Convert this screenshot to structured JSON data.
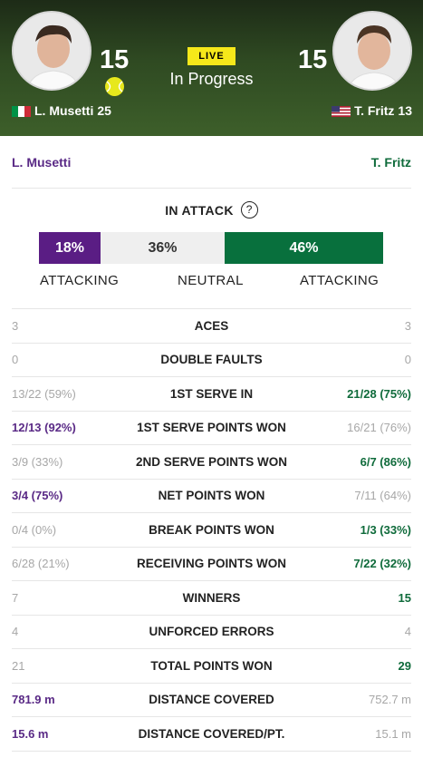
{
  "header": {
    "status_badge": "LIVE",
    "status_text": "In Progress",
    "left": {
      "score": "15",
      "name": "L. Musetti",
      "seed": "25",
      "flag": "italy-flag",
      "serving": true
    },
    "right": {
      "score": "15",
      "name": "T. Fritz",
      "seed": "13",
      "flag": "usa-flag"
    }
  },
  "panel": {
    "left_name": "L. Musetti",
    "right_name": "T. Fritz",
    "attack": {
      "title": "IN ATTACK",
      "help_glyph": "?",
      "left_pct": "18%",
      "neutral_pct": "36%",
      "right_pct": "46%",
      "left_fraction": 0.18,
      "neutral_fraction": 0.36,
      "right_fraction": 0.46,
      "left_label": "ATTACKING",
      "neutral_label": "NEUTRAL",
      "right_label": "ATTACKING"
    },
    "stats": [
      {
        "label": "ACES",
        "left": "3",
        "right": "3",
        "winner": "none"
      },
      {
        "label": "DOUBLE FAULTS",
        "left": "0",
        "right": "0",
        "winner": "none"
      },
      {
        "label": "1ST SERVE IN",
        "left": "13/22 (59%)",
        "right": "21/28 (75%)",
        "winner": "right"
      },
      {
        "label": "1ST SERVE POINTS WON",
        "left": "12/13 (92%)",
        "right": "16/21 (76%)",
        "winner": "left"
      },
      {
        "label": "2ND SERVE POINTS WON",
        "left": "3/9 (33%)",
        "right": "6/7 (86%)",
        "winner": "right"
      },
      {
        "label": "NET POINTS WON",
        "left": "3/4 (75%)",
        "right": "7/11 (64%)",
        "winner": "left"
      },
      {
        "label": "BREAK POINTS WON",
        "left": "0/4 (0%)",
        "right": "1/3 (33%)",
        "winner": "right"
      },
      {
        "label": "RECEIVING POINTS WON",
        "left": "6/28 (21%)",
        "right": "7/22 (32%)",
        "winner": "right"
      },
      {
        "label": "WINNERS",
        "left": "7",
        "right": "15",
        "winner": "right"
      },
      {
        "label": "UNFORCED ERRORS",
        "left": "4",
        "right": "4",
        "winner": "none"
      },
      {
        "label": "TOTAL POINTS WON",
        "left": "21",
        "right": "29",
        "winner": "right"
      },
      {
        "label": "DISTANCE COVERED",
        "left": "781.9 m",
        "right": "752.7 m",
        "winner": "left"
      },
      {
        "label": "DISTANCE COVERED/PT.",
        "left": "15.6 m",
        "right": "15.1 m",
        "winner": "left"
      }
    ]
  },
  "colors": {
    "purple": "#5a1d84",
    "green": "#08703d",
    "live": "#f6e81a"
  }
}
